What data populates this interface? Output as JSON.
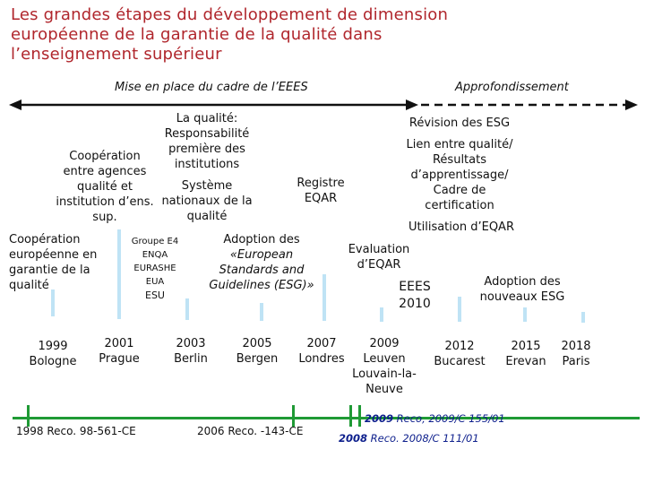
{
  "title_lines": [
    "Les grandes étapes du développement de dimension",
    "européenne de la garantie de la qualité dans",
    "l’enseignement supérieur"
  ],
  "phases": {
    "left_label": "Mise en place du cadre de l’EEES",
    "right_label": "Approfondissement"
  },
  "upper_texts": {
    "quality_responsibility": [
      "La qualité:",
      "Responsabilité",
      "première des",
      "institutions"
    ],
    "agency_cooperation": [
      "Coopération",
      "entre agences",
      "qualité  et",
      "institution d’ens.",
      "sup."
    ],
    "national_system": [
      "Système",
      "nationaux de la",
      "qualité"
    ],
    "register": [
      "Registre",
      "EQAR"
    ],
    "esg_revision": "Révision des ESG",
    "learning_outcomes": [
      "Lien entre qualité/",
      "Résultats",
      "d’apprentissage/",
      "Cadre de",
      "certification"
    ],
    "eqar_use": "Utilisation d’EQAR"
  },
  "middle_texts": {
    "european_cooperation": [
      "Coopération",
      "européenne en",
      "garantie de la",
      "qualité"
    ],
    "e4_group": [
      "Groupe E4",
      "ENQA",
      "EURASHE",
      "EUA",
      "ESU"
    ],
    "esg_adoption": [
      "Adoption des",
      "«European",
      "Standards and",
      "Guidelines (ESG)»"
    ],
    "eqar_evaluation": [
      "Evaluation",
      "d’EQAR"
    ],
    "eees_2010": [
      "EEES",
      "2010"
    ],
    "new_esg": [
      "Adoption des",
      "nouveaux ESG"
    ]
  },
  "milestones": [
    {
      "year": "1999",
      "city": "Bologne"
    },
    {
      "year": "2001",
      "city": "Prague"
    },
    {
      "year": "2003",
      "city": "Berlin"
    },
    {
      "year": "2005",
      "city": "Bergen"
    },
    {
      "year": "2007",
      "city": "Londres"
    },
    {
      "year": "2009",
      "city": "Leuven Louvain-la-Neuve"
    },
    {
      "year": "2012",
      "city": "Bucarest"
    },
    {
      "year": "2015",
      "city": "Erevan"
    },
    {
      "year": "2018",
      "city": "Paris"
    }
  ],
  "recommendations": {
    "r1998": "1998 Reco. 98-561-CE",
    "r2006": "2006 Reco.  -143-CE",
    "r2009_year": "2009",
    "r2009_ref": "Reco, 2009/C 155/01",
    "r2008_year": "2008",
    "r2008_ref": "Reco. 2008/C 111/01"
  },
  "colors": {
    "title": "#b0262c",
    "phase_line": "#111111",
    "milestone_bar": "#bfe3f5",
    "axis": "#1f9a35",
    "blue_text": "#0d1f8c"
  }
}
